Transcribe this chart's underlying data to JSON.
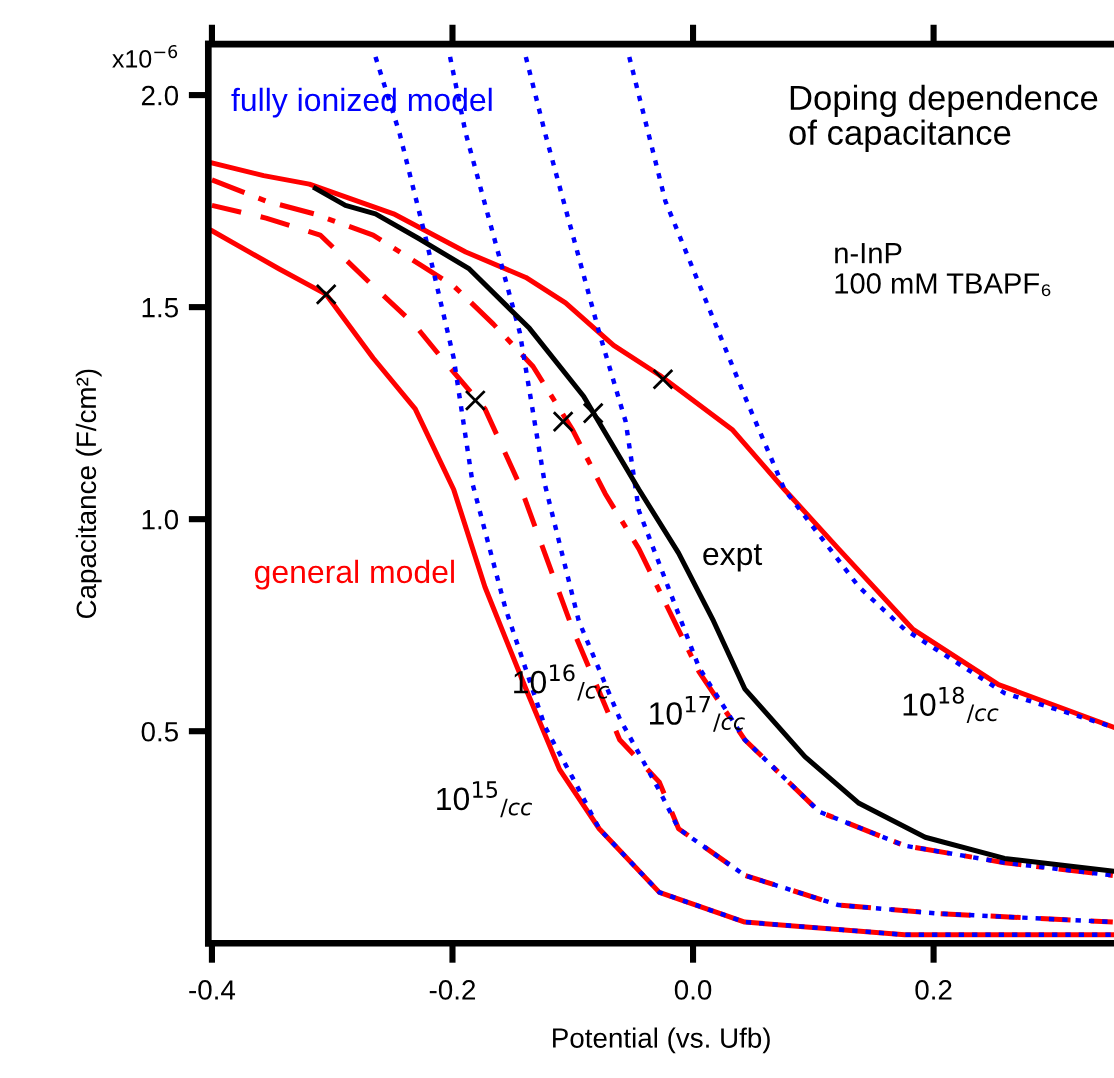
{
  "chart_data": {
    "type": "line",
    "title": "Doping dependence\nof capacitance",
    "subtitle": "n-InP\n100 mM TBAPF₆",
    "xlabel": "Potential (vs. Ufb)",
    "ylabel": "Capacitance (F/cm²)",
    "xlim": [
      -0.403,
      0.35
    ],
    "ylim": [
      0,
      2.12
    ],
    "xticks": [
      -0.4,
      -0.2,
      {
        "value": 0,
        "label": "0.0"
      },
      0.2
    ],
    "yticks": [
      0.5,
      {
        "value": 1.0,
        "label": "1.0"
      },
      1.5,
      {
        "value": 2.0,
        "label": "2.0"
      }
    ],
    "grid": false,
    "legend": false,
    "marker": "none",
    "series": [
      {
        "type": "line",
        "name": "general model",
        "color": "#ff0000",
        "line_style": "solid",
        "x": [
          -0.4,
          -0.357,
          -0.319,
          -0.249,
          -0.189,
          -0.139,
          -0.106,
          -0.066,
          -0.028,
          0.033,
          0.076,
          0.121,
          0.183,
          0.254,
          0.349
        ],
        "values": [
          1.84,
          1.81,
          1.79,
          1.72,
          1.63,
          1.57,
          1.51,
          1.41,
          1.34,
          1.21,
          1.07,
          0.93,
          0.74,
          0.61,
          0.51
        ]
      },
      {
        "type": "line",
        "color": "#ff0000",
        "line_style": "dashdot",
        "x": [
          -0.4,
          -0.355,
          -0.315,
          -0.266,
          -0.227,
          -0.199,
          -0.166,
          -0.133,
          -0.1,
          -0.073,
          -0.045,
          0.005,
          0.043,
          0.105,
          0.176,
          0.259,
          0.349
        ],
        "values": [
          1.8,
          1.75,
          1.72,
          1.67,
          1.6,
          1.55,
          1.46,
          1.36,
          1.21,
          1.06,
          0.93,
          0.64,
          0.48,
          0.31,
          0.23,
          0.19,
          0.16
        ]
      },
      {
        "type": "line",
        "color": "#ff0000",
        "line_style": "dashed",
        "x": [
          -0.4,
          -0.355,
          -0.31,
          -0.266,
          -0.232,
          -0.206,
          -0.173,
          -0.144,
          -0.1,
          -0.061,
          -0.028,
          -0.012,
          0.043,
          0.121,
          0.204,
          0.349
        ],
        "values": [
          1.74,
          1.71,
          1.67,
          1.55,
          1.46,
          1.37,
          1.26,
          1.08,
          0.74,
          0.48,
          0.38,
          0.27,
          0.16,
          0.09,
          0.07,
          0.05
        ]
      },
      {
        "type": "line",
        "color": "#ff0000",
        "line_style": "solid",
        "x": [
          -0.4,
          -0.344,
          -0.305,
          -0.266,
          -0.231,
          -0.199,
          -0.173,
          -0.139,
          -0.111,
          -0.078,
          -0.028,
          0.043,
          0.176,
          0.349
        ],
        "values": [
          1.68,
          1.59,
          1.53,
          1.38,
          1.26,
          1.07,
          0.84,
          0.6,
          0.41,
          0.27,
          0.12,
          0.05,
          0.02,
          0.02
        ]
      },
      {
        "type": "line",
        "name": "fully ionized model",
        "color": "#0000ff",
        "line_style": "dotted",
        "x": [
          -0.264,
          -0.244,
          -0.222,
          -0.199,
          -0.183,
          -0.156,
          -0.123,
          -0.1,
          -0.078,
          -0.028,
          0.043,
          0.176,
          0.349
        ],
        "values": [
          2.09,
          1.91,
          1.66,
          1.38,
          1.08,
          0.79,
          0.51,
          0.39,
          0.27,
          0.12,
          0.05,
          0.02,
          0.02
        ]
      },
      {
        "type": "line",
        "color": "#0000ff",
        "line_style": "dotted",
        "x": [
          -0.202,
          -0.189,
          -0.166,
          -0.144,
          -0.123,
          -0.095,
          -0.061,
          -0.028,
          -0.012,
          0.043,
          0.121,
          0.204,
          0.349
        ],
        "values": [
          2.09,
          1.91,
          1.67,
          1.44,
          1.08,
          0.76,
          0.53,
          0.36,
          0.27,
          0.16,
          0.09,
          0.07,
          0.05
        ]
      },
      {
        "type": "line",
        "color": "#0000ff",
        "line_style": "dotted",
        "x": [
          -0.139,
          -0.123,
          -0.1,
          -0.078,
          -0.056,
          -0.045,
          0.005,
          0.043,
          0.105,
          0.176,
          0.259,
          0.349
        ],
        "values": [
          2.09,
          1.91,
          1.67,
          1.44,
          1.23,
          1.02,
          0.65,
          0.48,
          0.31,
          0.23,
          0.19,
          0.16
        ]
      },
      {
        "type": "line",
        "color": "#0000ff",
        "line_style": "dotted",
        "x": [
          -0.053,
          -0.023,
          0.01,
          0.043,
          0.076,
          0.138,
          0.176,
          0.259,
          0.349
        ],
        "values": [
          2.09,
          1.75,
          1.52,
          1.29,
          1.07,
          0.84,
          0.74,
          0.59,
          0.51
        ]
      },
      {
        "type": "line",
        "name": "expt",
        "color": "#000000",
        "line_style": "solid",
        "x": [
          -0.314,
          -0.289,
          -0.264,
          -0.227,
          -0.186,
          -0.136,
          -0.091,
          -0.045,
          -0.012,
          0.017,
          0.043,
          0.093,
          0.138,
          0.193,
          0.259,
          0.349
        ],
        "values": [
          1.78,
          1.74,
          1.72,
          1.66,
          1.59,
          1.45,
          1.29,
          1.07,
          0.92,
          0.76,
          0.6,
          0.44,
          0.33,
          0.25,
          0.2,
          0.17
        ]
      },
      {
        "type": "scatter",
        "color": "#000000",
        "marker": "cross",
        "x": [
          -0.305,
          -0.181,
          -0.108,
          -0.083,
          -0.025
        ],
        "values": [
          1.53,
          1.28,
          1.23,
          1.25,
          1.33
        ]
      }
    ],
    "annotations": [
      "10$^{16}$$_{/cc}$",
      "10$^{15}$$_{/cc}$",
      "10$^{17}$$_{/cc}$",
      "10$^{18}$$_{/cc}$",
      "x10$^{−6}$"
    ]
  }
}
